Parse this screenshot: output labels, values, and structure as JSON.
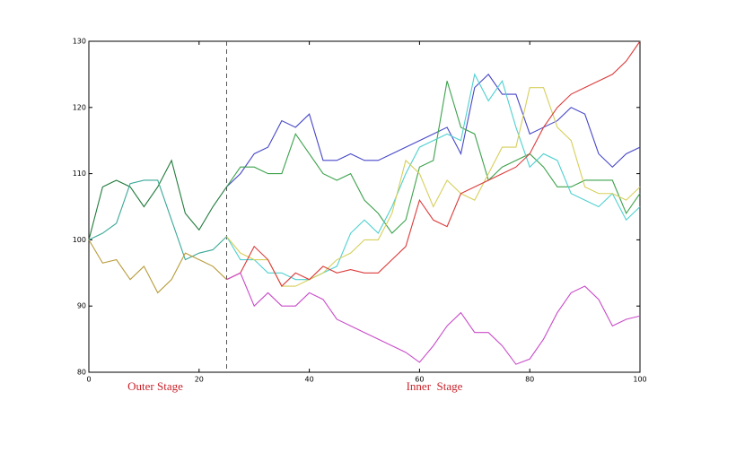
{
  "chart_data": {
    "type": "line",
    "x": [
      0,
      2.5,
      5,
      7.5,
      10,
      12.5,
      15,
      17.5,
      20,
      22.5,
      25,
      27.5,
      30,
      32.5,
      35,
      37.5,
      40,
      42.5,
      45,
      47.5,
      50,
      52.5,
      55,
      57.5,
      60,
      62.5,
      65,
      67.5,
      70,
      72.5,
      75,
      77.5,
      80,
      82.5,
      85,
      87.5,
      90,
      92.5,
      95,
      97.5,
      100
    ],
    "series": [
      {
        "color": "#217a3c",
        "values": [
          100,
          108,
          109,
          108,
          105,
          108,
          112,
          104,
          101.5,
          105,
          108,
          null,
          null,
          null,
          null,
          null,
          null,
          null,
          null,
          null,
          null,
          null,
          null,
          null,
          null,
          null,
          null,
          null,
          null,
          null,
          null,
          null,
          null,
          null,
          null,
          null,
          null,
          null,
          null,
          null,
          null
        ]
      },
      {
        "color": "#3aa897",
        "values": [
          100,
          101,
          102.5,
          108.5,
          109,
          109,
          103,
          97,
          98,
          98.5,
          100.5,
          null,
          null,
          null,
          null,
          null,
          null,
          null,
          null,
          null,
          null,
          null,
          null,
          null,
          null,
          null,
          null,
          null,
          null,
          null,
          null,
          null,
          null,
          null,
          null,
          null,
          null,
          null,
          null,
          null,
          null
        ]
      },
      {
        "color": "#b89c3c",
        "values": [
          100,
          96.5,
          97,
          94,
          96,
          92,
          94,
          98,
          97,
          96,
          94,
          null,
          null,
          null,
          null,
          null,
          null,
          null,
          null,
          null,
          null,
          null,
          null,
          null,
          null,
          null,
          null,
          null,
          null,
          null,
          null,
          null,
          null,
          null,
          null,
          null,
          null,
          null,
          null,
          null,
          null
        ]
      },
      {
        "color": "#4747c9",
        "values": [
          null,
          null,
          null,
          null,
          null,
          null,
          null,
          null,
          null,
          null,
          108,
          110,
          113,
          114,
          118,
          117,
          119,
          112,
          112,
          113,
          112,
          112,
          113,
          114,
          115,
          116,
          117,
          113,
          123,
          125,
          122,
          122,
          116,
          117,
          118,
          120,
          119,
          113,
          111,
          113,
          114
        ]
      },
      {
        "color": "#3ca24c",
        "values": [
          null,
          null,
          null,
          null,
          null,
          null,
          null,
          null,
          null,
          null,
          108,
          111,
          111,
          110,
          110,
          116,
          113,
          110,
          109,
          110,
          106,
          104,
          101,
          103,
          111,
          112,
          124,
          117,
          116,
          109,
          111,
          112,
          113,
          111,
          108,
          108,
          109,
          109,
          109,
          104,
          107
        ]
      },
      {
        "color": "#4fd0d0",
        "values": [
          null,
          null,
          null,
          null,
          null,
          null,
          null,
          null,
          null,
          null,
          100.5,
          97,
          97,
          95,
          95,
          94,
          94,
          95,
          96,
          101,
          103,
          101,
          105,
          110,
          114,
          115,
          116,
          115,
          125,
          121,
          124,
          117,
          111,
          113,
          112,
          107,
          106,
          105,
          107,
          103,
          105
        ]
      },
      {
        "color": "#d6cf5a",
        "values": [
          null,
          null,
          null,
          null,
          null,
          null,
          null,
          null,
          null,
          null,
          100.5,
          98,
          97,
          97,
          93,
          93,
          94,
          95,
          97,
          98,
          100,
          100,
          104,
          112,
          110,
          105,
          109,
          107,
          106,
          110,
          114,
          114,
          123,
          123,
          117,
          115,
          108,
          107,
          107,
          106,
          108
        ]
      },
      {
        "color": "#dc3a3a",
        "values": [
          null,
          null,
          null,
          null,
          null,
          null,
          null,
          null,
          null,
          null,
          94,
          95,
          99,
          97,
          93,
          95,
          94,
          96,
          95,
          95.5,
          95,
          95,
          97,
          99,
          106,
          103,
          102,
          107,
          108,
          109,
          110,
          111,
          113,
          117,
          120,
          122,
          123,
          124,
          125,
          127,
          130
        ]
      },
      {
        "color": "#c94bc9",
        "values": [
          null,
          null,
          null,
          null,
          null,
          null,
          null,
          null,
          null,
          null,
          94,
          95,
          90,
          92,
          90,
          90,
          92,
          91,
          88,
          87,
          86,
          85,
          84,
          83,
          81.5,
          84,
          87,
          89,
          86,
          86,
          84,
          81.2,
          82,
          85,
          89,
          92,
          93,
          91,
          87,
          88,
          88.5
        ]
      }
    ],
    "xlim": [
      0,
      100
    ],
    "ylim": [
      80,
      130
    ],
    "xticks": [
      0,
      20,
      40,
      60,
      80,
      100
    ],
    "yticks": [
      80,
      90,
      100,
      110,
      120,
      130
    ],
    "vline": 25,
    "annotations": [
      "Outer Stage",
      "Inner  Stage"
    ]
  }
}
